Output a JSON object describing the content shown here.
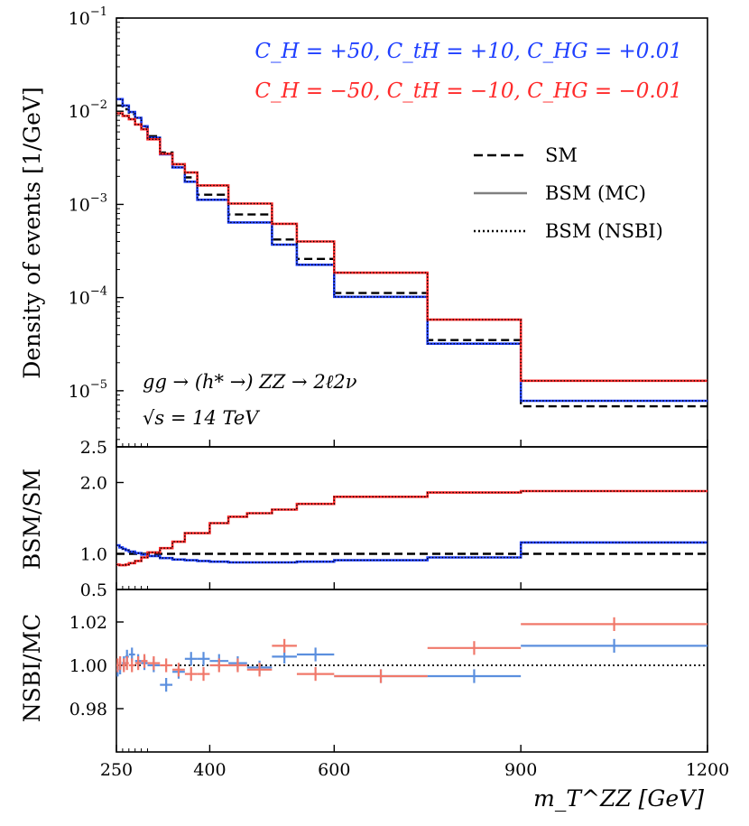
{
  "chart_data": [
    {
      "type": "line",
      "drawstyle": "steps",
      "panel": "main",
      "yscale": "log",
      "ylabel": "Density of events [1/GeV]",
      "xlim": [
        250,
        1200
      ],
      "ylim": [
        2.5e-06,
        0.1
      ],
      "major_ticks": [
        {
          "value": 0.1,
          "label": "10",
          "exp": "−1"
        },
        {
          "value": 0.01,
          "label": "10",
          "exp": "−2"
        },
        {
          "value": 0.001,
          "label": "10",
          "exp": "−3"
        },
        {
          "value": 0.0001,
          "label": "10",
          "exp": "−4"
        },
        {
          "value": 1e-05,
          "label": "10",
          "exp": "−5"
        }
      ],
      "bin_edges": [
        250,
        260,
        270,
        280,
        290,
        300,
        320,
        340,
        360,
        380,
        400,
        430,
        460,
        500,
        540,
        600,
        750,
        900,
        1200
      ],
      "series": [
        {
          "name": "SM",
          "style": "dashed",
          "color": "#000000",
          "values": [
            0.0115,
            0.0105,
            0.0093,
            0.0082,
            0.0068,
            0.0054,
            0.0036,
            0.0027,
            0.00195,
            0.00127,
            0.00127,
            0.00078,
            0.00078,
            0.00042,
            0.00026,
            0.000112,
            3.5e-05,
            6.8e-06
          ]
        },
        {
          "name": "C_H = +50, C_tH = +10, C_HG = +0.01",
          "style": "solid+dotted",
          "color": "#1f3fff",
          "values": [
            0.0135,
            0.0115,
            0.0098,
            0.0085,
            0.0069,
            0.0052,
            0.00345,
            0.0025,
            0.00175,
            0.00112,
            0.00112,
            0.00064,
            0.00064,
            0.00037,
            0.000225,
            0.000102,
            3.2e-05,
            7.8e-06
          ]
        },
        {
          "name": "C_H = −50, C_tH = −10, C_HG = −0.01",
          "style": "solid+dotted",
          "color": "#ff2a2a",
          "values": [
            0.0095,
            0.0089,
            0.0082,
            0.0072,
            0.0064,
            0.005,
            0.0035,
            0.0027,
            0.0022,
            0.0016,
            0.0016,
            0.00102,
            0.00102,
            0.00062,
            0.0004,
            0.000185,
            5.8e-05,
            1.28e-05
          ]
        }
      ],
      "legend": [
        {
          "label": "SM",
          "style": "dashed"
        },
        {
          "label": "BSM (MC)",
          "style": "solid"
        },
        {
          "label": "BSM (NSBI)",
          "style": "dotted"
        }
      ],
      "legend_position": "upper-right",
      "annotations": {
        "coef_blue": "C_H = +50, C_tH = +10, C_HG = +0.01",
        "coef_red": "C_H = −50, C_tH = −10, C_HG = −0.01",
        "process": "gg → (h* →) ZZ → 2ℓ2ν",
        "energy": "√s = 14 TeV"
      }
    },
    {
      "type": "line",
      "drawstyle": "steps",
      "panel": "ratio",
      "ylabel": "BSM/SM",
      "ylim": [
        0.5,
        2.5
      ],
      "yticks": [
        "0.5",
        "1.0",
        "2.0",
        "2.5"
      ],
      "ytick_values": [
        0.5,
        1.0,
        2.0,
        2.5
      ],
      "bin_edges": [
        250,
        255,
        260,
        265,
        270,
        280,
        290,
        300,
        320,
        340,
        360,
        380,
        400,
        430,
        460,
        500,
        540,
        600,
        750,
        900,
        1200
      ],
      "series": [
        {
          "name": "SM",
          "style": "dashed",
          "color": "#000000",
          "values": [
            1.0,
            1.0,
            1.0,
            1.0,
            1.0,
            1.0,
            1.0,
            1.0,
            1.0,
            1.0,
            1.0,
            1.0,
            1.0,
            1.0,
            1.0,
            1.0,
            1.0,
            1.0,
            1.0,
            1.0
          ]
        },
        {
          "name": "blue BSM",
          "style": "solid+dotted",
          "color": "#1f3fff",
          "values": [
            1.12,
            1.09,
            1.07,
            1.05,
            1.03,
            1.01,
            0.99,
            0.97,
            0.94,
            0.92,
            0.91,
            0.9,
            0.89,
            0.88,
            0.88,
            0.88,
            0.89,
            0.91,
            0.95,
            1.16
          ]
        },
        {
          "name": "red BSM",
          "style": "solid+dotted",
          "color": "#ff2a2a",
          "values": [
            0.85,
            0.84,
            0.84,
            0.85,
            0.87,
            0.9,
            0.95,
            1.02,
            1.08,
            1.17,
            1.29,
            1.29,
            1.43,
            1.52,
            1.57,
            1.62,
            1.7,
            1.8,
            1.86,
            1.88
          ]
        }
      ]
    },
    {
      "type": "scatter",
      "panel": "closure",
      "ylabel": "NSBI/MC",
      "ylim": [
        0.96,
        1.035
      ],
      "yticks": [
        "0.98",
        "1.00",
        "1.02"
      ],
      "ytick_values": [
        0.98,
        1.0,
        1.02
      ],
      "reference_line": 1.0,
      "xlabel": "m_T^ZZ [GeV]",
      "xticks": [
        "250",
        "400",
        "600",
        "900",
        "1200"
      ],
      "xtick_values": [
        250,
        400,
        600,
        900,
        1200
      ],
      "series": [
        {
          "name": "blue",
          "color": "#5b8fde",
          "points": [
            {
              "x": 252,
              "xerr": 2,
              "y": 0.998,
              "yerr": 0.0015
            },
            {
              "x": 256,
              "xerr": 2,
              "y": 0.999,
              "yerr": 0.0015
            },
            {
              "x": 262,
              "xerr": 3,
              "y": 1.001,
              "yerr": 0.0015
            },
            {
              "x": 267,
              "xerr": 3,
              "y": 1.004,
              "yerr": 0.0015
            },
            {
              "x": 275,
              "xerr": 5,
              "y": 1.005,
              "yerr": 0.0015
            },
            {
              "x": 285,
              "xerr": 5,
              "y": 1.002,
              "yerr": 0.0015
            },
            {
              "x": 295,
              "xerr": 5,
              "y": 1.001,
              "yerr": 0.0015
            },
            {
              "x": 310,
              "xerr": 10,
              "y": 1.0,
              "yerr": 0.0015
            },
            {
              "x": 330,
              "xerr": 10,
              "y": 0.991,
              "yerr": 0.0015
            },
            {
              "x": 350,
              "xerr": 10,
              "y": 0.997,
              "yerr": 0.0015
            },
            {
              "x": 370,
              "xerr": 10,
              "y": 1.003,
              "yerr": 0.0015
            },
            {
              "x": 390,
              "xerr": 10,
              "y": 1.003,
              "yerr": 0.0015
            },
            {
              "x": 415,
              "xerr": 15,
              "y": 1.002,
              "yerr": 0.0015
            },
            {
              "x": 445,
              "xerr": 15,
              "y": 1.001,
              "yerr": 0.0015
            },
            {
              "x": 480,
              "xerr": 20,
              "y": 0.999,
              "yerr": 0.0015
            },
            {
              "x": 520,
              "xerr": 20,
              "y": 1.004,
              "yerr": 0.0015
            },
            {
              "x": 570,
              "xerr": 30,
              "y": 1.005,
              "yerr": 0.0015
            },
            {
              "x": 675,
              "xerr": 75,
              "y": 0.995,
              "yerr": 0.0015
            },
            {
              "x": 825,
              "xerr": 75,
              "y": 0.995,
              "yerr": 0.0015
            },
            {
              "x": 1050,
              "xerr": 150,
              "y": 1.009,
              "yerr": 0.0015
            }
          ]
        },
        {
          "name": "red",
          "color": "#f0786a",
          "points": [
            {
              "x": 252,
              "xerr": 2,
              "y": 1.0,
              "yerr": 0.0015
            },
            {
              "x": 256,
              "xerr": 2,
              "y": 1.001,
              "yerr": 0.0015
            },
            {
              "x": 262,
              "xerr": 3,
              "y": 1.0,
              "yerr": 0.0015
            },
            {
              "x": 267,
              "xerr": 3,
              "y": 1.001,
              "yerr": 0.0015
            },
            {
              "x": 275,
              "xerr": 5,
              "y": 1.0,
              "yerr": 0.0015
            },
            {
              "x": 285,
              "xerr": 5,
              "y": 1.001,
              "yerr": 0.0015
            },
            {
              "x": 295,
              "xerr": 5,
              "y": 1.002,
              "yerr": 0.0015
            },
            {
              "x": 310,
              "xerr": 10,
              "y": 1.001,
              "yerr": 0.0015
            },
            {
              "x": 330,
              "xerr": 10,
              "y": 1.0,
              "yerr": 0.0015
            },
            {
              "x": 350,
              "xerr": 10,
              "y": 0.998,
              "yerr": 0.0015
            },
            {
              "x": 370,
              "xerr": 10,
              "y": 0.996,
              "yerr": 0.0015
            },
            {
              "x": 390,
              "xerr": 10,
              "y": 0.996,
              "yerr": 0.0015
            },
            {
              "x": 415,
              "xerr": 15,
              "y": 1.0,
              "yerr": 0.0015
            },
            {
              "x": 445,
              "xerr": 15,
              "y": 1.0,
              "yerr": 0.0015
            },
            {
              "x": 480,
              "xerr": 20,
              "y": 0.998,
              "yerr": 0.0015
            },
            {
              "x": 520,
              "xerr": 20,
              "y": 1.009,
              "yerr": 0.0015
            },
            {
              "x": 570,
              "xerr": 30,
              "y": 0.996,
              "yerr": 0.0015
            },
            {
              "x": 675,
              "xerr": 75,
              "y": 0.995,
              "yerr": 0.0015
            },
            {
              "x": 825,
              "xerr": 75,
              "y": 1.008,
              "yerr": 0.0015
            },
            {
              "x": 1050,
              "xerr": 150,
              "y": 1.019,
              "yerr": 0.0015
            }
          ]
        }
      ]
    }
  ]
}
